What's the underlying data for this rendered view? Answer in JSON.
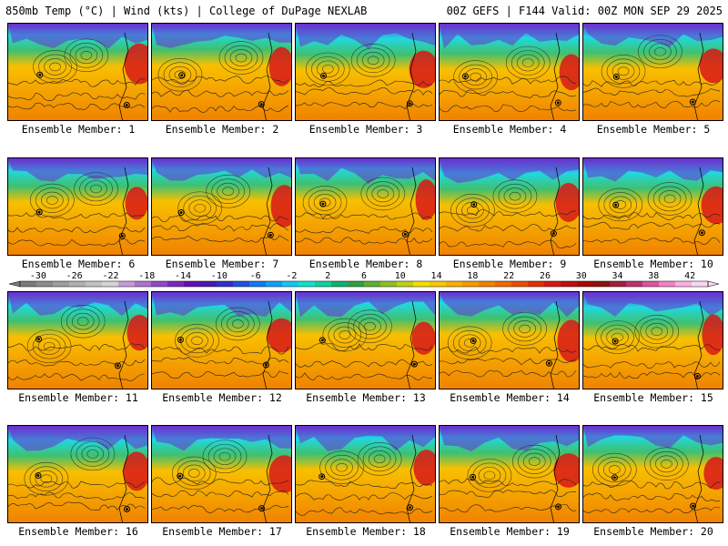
{
  "header": {
    "left": "850mb Temp (°C) | Wind (kts) | College of DuPage NEXLAB",
    "right": "00Z GEFS | F144 Valid: 00Z MON SEP 29 2025"
  },
  "caption_prefix": "Ensemble Member:",
  "members": [
    {
      "label": "Ensemble Member: 1"
    },
    {
      "label": "Ensemble Member: 2"
    },
    {
      "label": "Ensemble Member: 3"
    },
    {
      "label": "Ensemble Member: 4"
    },
    {
      "label": "Ensemble Member: 5"
    },
    {
      "label": "Ensemble Member: 6"
    },
    {
      "label": "Ensemble Member: 7"
    },
    {
      "label": "Ensemble Member: 8"
    },
    {
      "label": "Ensemble Member: 9"
    },
    {
      "label": "Ensemble Member: 10"
    },
    {
      "label": "Ensemble Member: 11"
    },
    {
      "label": "Ensemble Member: 12"
    },
    {
      "label": "Ensemble Member: 13"
    },
    {
      "label": "Ensemble Member: 14"
    },
    {
      "label": "Ensemble Member: 15"
    },
    {
      "label": "Ensemble Member: 16"
    },
    {
      "label": "Ensemble Member: 17"
    },
    {
      "label": "Ensemble Member: 18"
    },
    {
      "label": "Ensemble Member: 19"
    },
    {
      "label": "Ensemble Member: 20"
    }
  ],
  "colorbar": {
    "tick_labels": [
      "-30",
      "-26",
      "-22",
      "-18",
      "-14",
      "-10",
      "-6",
      "-2",
      "2",
      "6",
      "10",
      "14",
      "18",
      "22",
      "26",
      "30",
      "34",
      "38",
      "42"
    ],
    "colors": [
      "#7a7a7a",
      "#8c8c8c",
      "#9e9e9e",
      "#b0b0b0",
      "#c2c2c2",
      "#d4d4d4",
      "#c89ad8",
      "#b070d0",
      "#9048c8",
      "#7a28c0",
      "#6010b8",
      "#4818b0",
      "#3030c8",
      "#2050e0",
      "#1478f0",
      "#10a0f8",
      "#10c8f0",
      "#10e0d0",
      "#10d0a0",
      "#10b070",
      "#30a040",
      "#60b030",
      "#90c020",
      "#c0d010",
      "#f0e000",
      "#f8c800",
      "#f8b000",
      "#f89800",
      "#f08000",
      "#f06800",
      "#e85000",
      "#e03000",
      "#d81818",
      "#c01010",
      "#a80808",
      "#901010",
      "#a02040",
      "#c03070",
      "#e050a0",
      "#f080c8",
      "#f8b0e0",
      "#f8d8f0"
    ]
  },
  "colors": {
    "cold": "#6a2fd0",
    "cool": "#20d8e0",
    "mild": "#40c070",
    "warm": "#f8c000",
    "hot": "#f08000",
    "very_hot": "#d81818",
    "contour": "#222222"
  }
}
